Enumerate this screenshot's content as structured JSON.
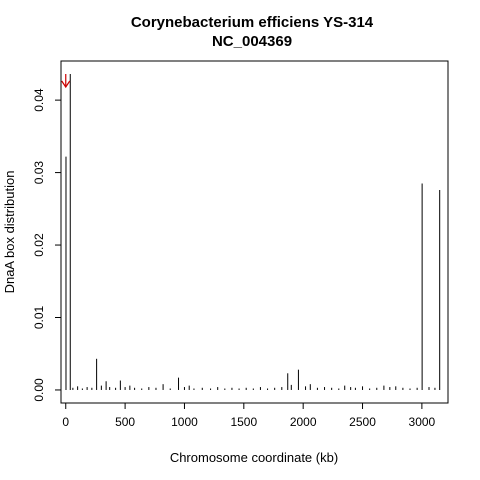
{
  "chart_data": {
    "type": "bar",
    "title": "Corynebacterium efficiens YS-314",
    "subtitle": "NC_004369",
    "xlabel": "Chromosome coordinate (kb)",
    "ylabel": "DnaA box distribution",
    "xlim": [
      -40,
      3220
    ],
    "ylim": [
      -0.0018,
      0.0454
    ],
    "xticks": [
      0,
      500,
      1000,
      1500,
      2000,
      2500,
      3000
    ],
    "xtick_labels": [
      "0",
      "500",
      "1000",
      "1500",
      "2000",
      "2500",
      "3000"
    ],
    "yticks": [
      0.0,
      0.01,
      0.02,
      0.03,
      0.04
    ],
    "ytick_labels": [
      "0.00",
      "0.01",
      "0.02",
      "0.03",
      "0.04"
    ],
    "grid": false,
    "legend": "none",
    "arrow": {
      "x": 0,
      "color": "#cc0000"
    },
    "bar_color": "#000000",
    "x": [
      2,
      38,
      60,
      100,
      140,
      180,
      220,
      260,
      300,
      340,
      370,
      420,
      460,
      500,
      540,
      580,
      640,
      700,
      760,
      820,
      880,
      950,
      1000,
      1040,
      1080,
      1150,
      1220,
      1280,
      1340,
      1400,
      1460,
      1520,
      1580,
      1640,
      1700,
      1760,
      1820,
      1870,
      1900,
      1960,
      2020,
      2060,
      2120,
      2180,
      2240,
      2300,
      2350,
      2400,
      2440,
      2500,
      2560,
      2620,
      2680,
      2730,
      2780,
      2840,
      2900,
      2960,
      3002,
      3060,
      3110,
      3150
    ],
    "values": [
      0.0322,
      0.0436,
      0.0003,
      0.0005,
      0.0002,
      0.0004,
      0.0003,
      0.0043,
      0.0006,
      0.0012,
      0.0004,
      0.0003,
      0.0013,
      0.0004,
      0.0006,
      0.0003,
      0.0002,
      0.0004,
      0.0003,
      0.0008,
      0.0002,
      0.0017,
      0.0004,
      0.0006,
      0.0002,
      0.0003,
      0.0002,
      0.0004,
      0.0002,
      0.0003,
      0.0002,
      0.0003,
      0.0002,
      0.0004,
      0.0002,
      0.0003,
      0.0004,
      0.0023,
      0.0007,
      0.0028,
      0.0005,
      0.0008,
      0.0003,
      0.0004,
      0.0003,
      0.0002,
      0.0006,
      0.0004,
      0.0003,
      0.0005,
      0.0002,
      0.0003,
      0.0006,
      0.0004,
      0.0005,
      0.0003,
      0.0002,
      0.0003,
      0.0285,
      0.0004,
      0.0003,
      0.0276
    ]
  }
}
